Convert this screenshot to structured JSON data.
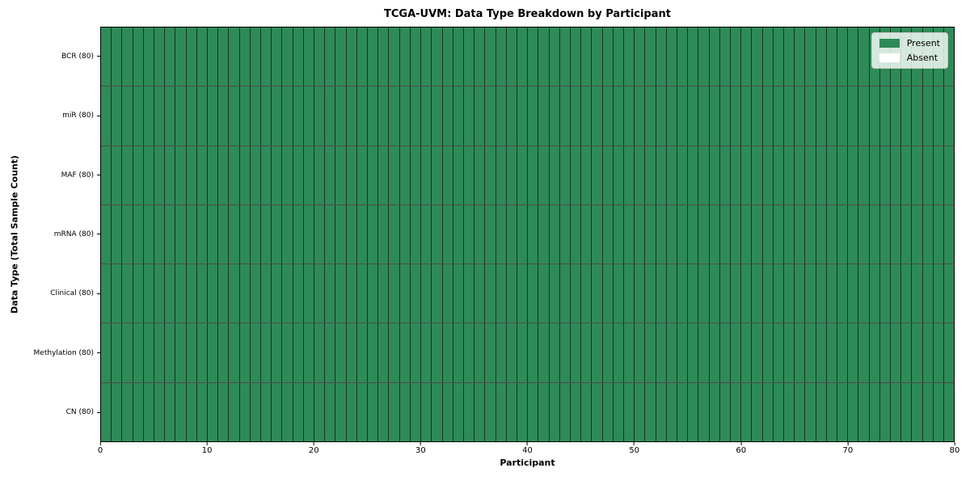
{
  "figure": {
    "title": "TCGA-UVM: Data Type Breakdown by Participant",
    "xlabel": "Participant",
    "ylabel": "Data Type (Total Sample Count)"
  },
  "legend": {
    "items": [
      {
        "label": "Present",
        "color": "#2e8b57"
      },
      {
        "label": "Absent",
        "color": "#ffffff"
      }
    ]
  },
  "chart_data": {
    "type": "heatmap",
    "title": "TCGA-UVM: Data Type Breakdown by Participant",
    "xlabel": "Participant",
    "ylabel": "Data Type (Total Sample Count)",
    "xlim": [
      0,
      80
    ],
    "x_ticks": [
      0,
      10,
      20,
      30,
      40,
      50,
      60,
      70,
      80
    ],
    "participants": 80,
    "rows": [
      {
        "label": "BCR (80)",
        "total": 80,
        "present": 80,
        "absent": 0
      },
      {
        "label": "miR (80)",
        "total": 80,
        "present": 80,
        "absent": 0
      },
      {
        "label": "MAF (80)",
        "total": 80,
        "present": 80,
        "absent": 0
      },
      {
        "label": "mRNA (80)",
        "total": 80,
        "present": 80,
        "absent": 0
      },
      {
        "label": "Clinical (80)",
        "total": 80,
        "present": 80,
        "absent": 0
      },
      {
        "label": "Methylation (80)",
        "total": 80,
        "present": 80,
        "absent": 0
      },
      {
        "label": "CN (80)",
        "total": 80,
        "present": 80,
        "absent": 0
      }
    ],
    "colors": {
      "present": "#2e8b57",
      "absent": "#ffffff",
      "axis": "#000000"
    },
    "legend_entries": [
      "Present",
      "Absent"
    ],
    "legend_position": "upper right",
    "grid": "cell-borders"
  }
}
